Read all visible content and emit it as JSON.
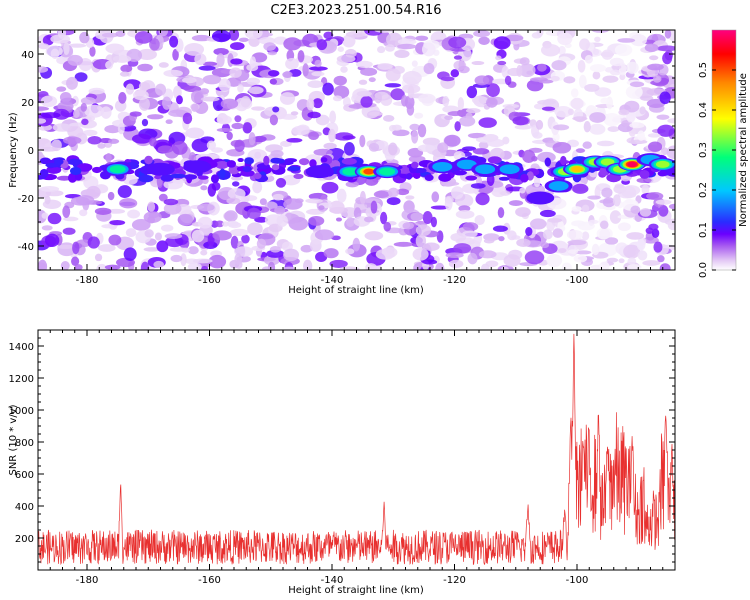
{
  "title": "C2E3.2023.251.00.54.R16",
  "colors": {
    "snr_line": "#e8302f",
    "spectrogram_palette": [
      "#ffffff",
      "#e3c8f5",
      "#a85cf0",
      "#6a00ff",
      "#2a2cff",
      "#00c8ff",
      "#00ff7a",
      "#ffff00",
      "#ff8800",
      "#ff0000",
      "#ff007f"
    ]
  },
  "chart_data": [
    {
      "type": "heatmap",
      "xlabel": "Height of straight line (km)",
      "ylabel": "Frequency (Hz)",
      "xlim": [
        -188,
        -84
      ],
      "ylim": [
        -50,
        50
      ],
      "xticks": [
        -180,
        -160,
        -140,
        -120,
        -100
      ],
      "yticks": [
        -40,
        -20,
        0,
        20,
        40
      ],
      "colorbar": {
        "label": "Normalized spectral amplitude",
        "range": [
          0.0,
          0.6
        ],
        "ticks": [
          "0.0",
          "0.1",
          "0.2",
          "0.3",
          "0.4",
          "0.5"
        ]
      },
      "signal_band_hz": -8,
      "features": [
        {
          "x": -175,
          "y": -8,
          "amp": 0.3
        },
        {
          "x": -168,
          "y": -8,
          "amp": 0.12
        },
        {
          "x": -162,
          "y": -7,
          "amp": 0.12
        },
        {
          "x": -142,
          "y": -9,
          "amp": 0.14
        },
        {
          "x": -137,
          "y": -9,
          "amp": 0.3
        },
        {
          "x": -134,
          "y": -9,
          "amp": 0.5
        },
        {
          "x": -131,
          "y": -9,
          "amp": 0.3
        },
        {
          "x": -122,
          "y": -7,
          "amp": 0.18
        },
        {
          "x": -118,
          "y": -6,
          "amp": 0.22
        },
        {
          "x": -115,
          "y": -8,
          "amp": 0.2
        },
        {
          "x": -111,
          "y": -8,
          "amp": 0.22
        },
        {
          "x": -106,
          "y": -20,
          "amp": 0.15
        },
        {
          "x": -103,
          "y": -15,
          "amp": 0.2
        },
        {
          "x": -102,
          "y": -9,
          "amp": 0.35
        },
        {
          "x": -100,
          "y": -8,
          "amp": 0.42
        },
        {
          "x": -97,
          "y": -5,
          "amp": 0.4
        },
        {
          "x": -95,
          "y": -5,
          "amp": 0.35
        },
        {
          "x": -93,
          "y": -8,
          "amp": 0.4
        },
        {
          "x": -91,
          "y": -6,
          "amp": 0.58
        },
        {
          "x": -88,
          "y": -4,
          "amp": 0.22
        },
        {
          "x": -86,
          "y": -6,
          "amp": 0.38
        }
      ]
    },
    {
      "type": "line",
      "xlabel": "Height of straight line (km)",
      "ylabel": "SNR (10 * v/v)",
      "xlim": [
        -188,
        -84
      ],
      "ylim": [
        0,
        1500
      ],
      "xticks": [
        -180,
        -160,
        -140,
        -120,
        -100
      ],
      "yticks": [
        200,
        400,
        600,
        800,
        1000,
        1200,
        1400
      ],
      "baseline_snr": 140,
      "peaks": [
        {
          "x": -174.5,
          "y": 560
        },
        {
          "x": -131.5,
          "y": 430
        },
        {
          "x": -108,
          "y": 420
        },
        {
          "x": -102,
          "y": 400
        },
        {
          "x": -101,
          "y": 980
        },
        {
          "x": -100.5,
          "y": 1480
        },
        {
          "x": -99,
          "y": 800
        },
        {
          "x": -96.5,
          "y": 1000
        },
        {
          "x": -95,
          "y": 780
        },
        {
          "x": -91,
          "y": 840
        },
        {
          "x": -85.5,
          "y": 1010
        },
        {
          "x": -84.5,
          "y": 800
        }
      ]
    }
  ]
}
